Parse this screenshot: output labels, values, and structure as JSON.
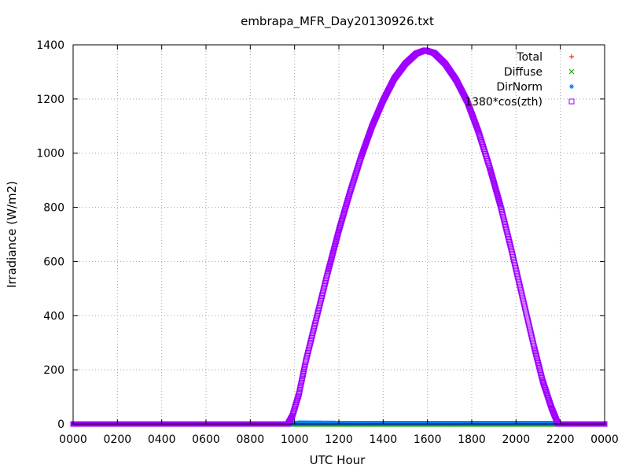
{
  "chart_data": {
    "type": "scatter",
    "title": "embrapa_MFR_Day20130926.txt",
    "xlabel": "UTC Hour",
    "ylabel": "Irradiance (W/m2)",
    "xlim": [
      0,
      24
    ],
    "ylim": [
      0,
      1400
    ],
    "x_tick_labels": [
      "0000",
      "0200",
      "0400",
      "0600",
      "0800",
      "1000",
      "1200",
      "1400",
      "1600",
      "1800",
      "2000",
      "2200",
      "0000"
    ],
    "y_tick_labels": [
      "0",
      "200",
      "400",
      "600",
      "800",
      "1000",
      "1200",
      "1400"
    ],
    "grid": true,
    "legend_position": "top-right",
    "series": [
      {
        "name": "Total",
        "marker": "+",
        "color": "#ff0000",
        "x": [
          0,
          24
        ],
        "y": [
          0,
          0
        ]
      },
      {
        "name": "Diffuse",
        "marker": "x",
        "color": "#00a000",
        "x": [
          0,
          24
        ],
        "y": [
          0,
          0
        ]
      },
      {
        "name": "DirNorm",
        "marker": "*",
        "color": "#0080ff",
        "x": [
          0,
          9.8,
          10.2,
          12,
          16,
          20,
          21.6,
          22,
          24
        ],
        "y": [
          0,
          0,
          4,
          3,
          3,
          3,
          3,
          0,
          0
        ]
      },
      {
        "name": "1380*cos(zth)",
        "marker": "square",
        "color": "#a000ff",
        "x": [
          0,
          9.7,
          9.9,
          10.2,
          10.5,
          11,
          11.5,
          12,
          12.5,
          13,
          13.5,
          14,
          14.5,
          15,
          15.5,
          15.9,
          16.3,
          16.8,
          17.3,
          17.8,
          18.3,
          18.8,
          19.3,
          19.8,
          20.3,
          20.8,
          21.2,
          21.6,
          21.9,
          24
        ],
        "y": [
          0,
          0,
          30,
          112,
          230,
          395,
          560,
          715,
          855,
          985,
          1100,
          1195,
          1275,
          1330,
          1368,
          1380,
          1370,
          1330,
          1270,
          1190,
          1080,
          950,
          805,
          640,
          465,
          290,
          160,
          60,
          0,
          0
        ]
      }
    ]
  }
}
